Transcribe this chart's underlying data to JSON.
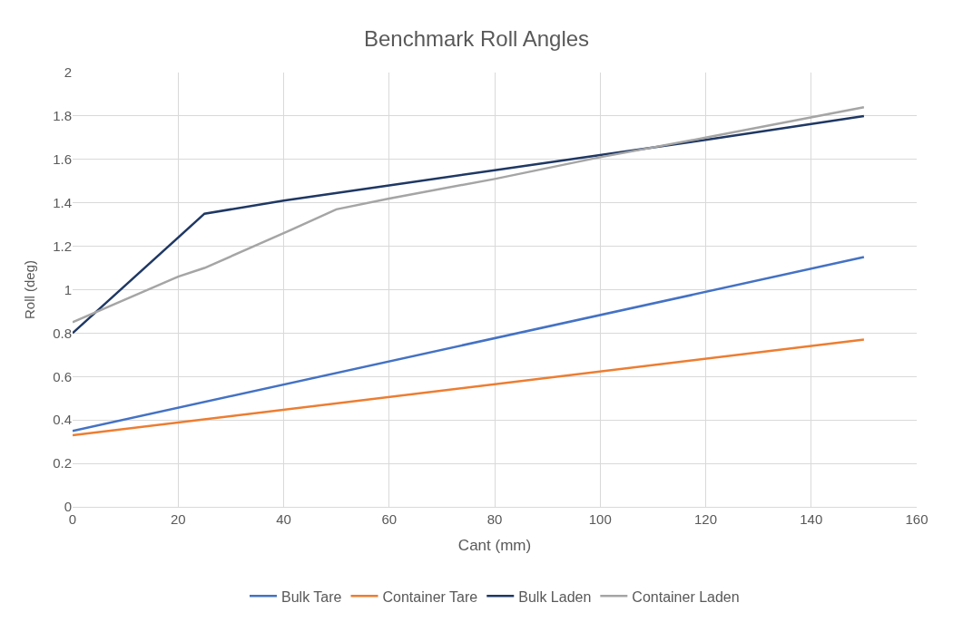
{
  "chart_data": {
    "type": "line",
    "title": "Benchmark Roll Angles",
    "xlabel": "Cant (mm)",
    "ylabel": "Roll (deg)",
    "xlim": [
      0,
      160
    ],
    "xticks": [
      0,
      20,
      40,
      60,
      80,
      100,
      120,
      140,
      160
    ],
    "ylim": [
      0,
      2
    ],
    "yticks": [
      0,
      0.2,
      0.4,
      0.6,
      0.8,
      1,
      1.2,
      1.4,
      1.6,
      1.8,
      2
    ],
    "grid": true,
    "legend": "bottom",
    "marker": "none",
    "line_style": "solid",
    "series": [
      {
        "name": "Bulk Tare",
        "color": "#4472c4",
        "x": [
          0,
          150
        ],
        "values": [
          0.35,
          1.15
        ]
      },
      {
        "name": "Container Tare",
        "color": "#ed7d31",
        "x": [
          0,
          150
        ],
        "values": [
          0.33,
          0.77
        ]
      },
      {
        "name": "Bulk Laden",
        "color": "#1f3864",
        "x": [
          0,
          25,
          40,
          60,
          80,
          100,
          120,
          150
        ],
        "values": [
          0.8,
          1.35,
          1.41,
          1.48,
          1.55,
          1.62,
          1.69,
          1.8
        ]
      },
      {
        "name": "Container Laden",
        "color": "#a5a5a5",
        "x": [
          0,
          20,
          25,
          40,
          50,
          60,
          80,
          100,
          120,
          150
        ],
        "values": [
          0.85,
          1.06,
          1.1,
          1.26,
          1.37,
          1.42,
          1.51,
          1.61,
          1.7,
          1.84
        ]
      }
    ]
  }
}
